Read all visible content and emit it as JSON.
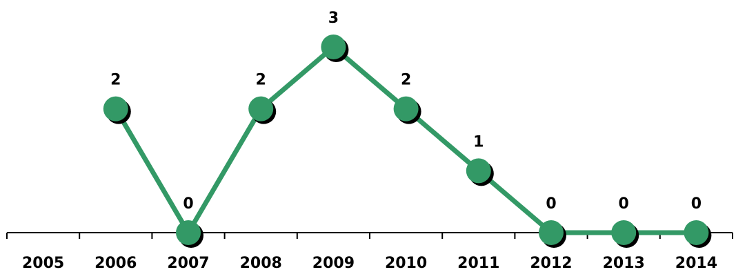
{
  "chart_data": {
    "type": "line",
    "categories": [
      "2005",
      "2006",
      "2007",
      "2008",
      "2009",
      "2010",
      "2011",
      "2012",
      "2013",
      "2014"
    ],
    "series": [
      {
        "values": [
          null,
          2,
          0,
          2,
          3,
          2,
          1,
          0,
          0,
          0
        ],
        "data_labels": [
          "",
          "2",
          "0",
          "2",
          "3",
          "2",
          "1",
          "0",
          "0",
          "0"
        ]
      }
    ],
    "ylim": [
      0,
      3
    ],
    "grid": false,
    "legend": "none",
    "colors": {
      "line": "#339966",
      "marker": "#339966",
      "marker_shadow": "#000000",
      "axis": "#000000"
    }
  }
}
